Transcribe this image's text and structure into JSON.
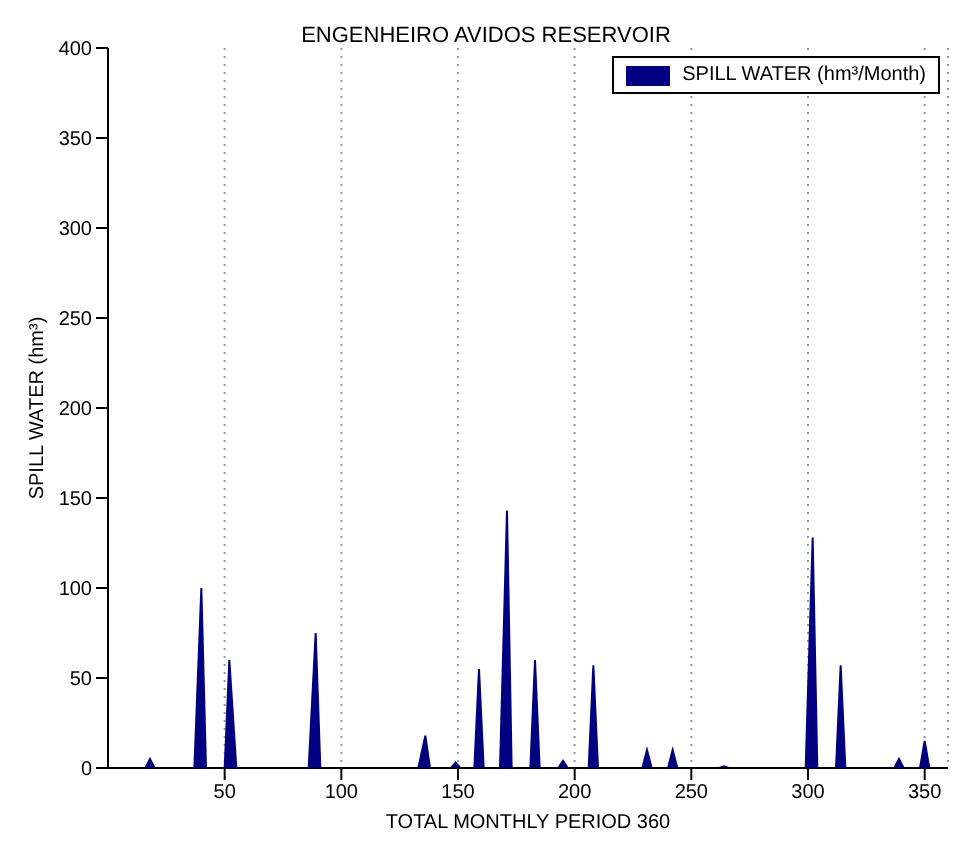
{
  "chart_data": {
    "type": "area",
    "title": "ENGENHEIRO AVIDOS RESERVOIR",
    "xlabel": "TOTAL MONTHLY PERIOD  360",
    "ylabel": "SPILL WATER (hm³)",
    "x": [
      1,
      16,
      18,
      20,
      37,
      40,
      42,
      50,
      52,
      55,
      86,
      89,
      91,
      133,
      136,
      138,
      147,
      149,
      151,
      157,
      159,
      161,
      168,
      171,
      173,
      181,
      183,
      185,
      193,
      195,
      197,
      206,
      208,
      210,
      229,
      231,
      233,
      240,
      242,
      244,
      262,
      264,
      266,
      299,
      302,
      304,
      312,
      314,
      316,
      337,
      339,
      341,
      348,
      350,
      352,
      360
    ],
    "series": [
      {
        "name": "SPILL WATER (hm³/Month)",
        "color": "#000080",
        "values": [
          0,
          0,
          5,
          0,
          0,
          100,
          0,
          0,
          60,
          0,
          0,
          75,
          0,
          0,
          18,
          0,
          0,
          3,
          0,
          0,
          55,
          0,
          0,
          143,
          0,
          0,
          60,
          0,
          0,
          4,
          0,
          0,
          57,
          0,
          0,
          10,
          0,
          0,
          10,
          0,
          0,
          1,
          0,
          0,
          128,
          0,
          0,
          57,
          0,
          0,
          5,
          0,
          0,
          15,
          0,
          0
        ]
      }
    ],
    "xlim": [
      0,
      360
    ],
    "xticks": [
      50,
      100,
      150,
      200,
      250,
      300,
      350
    ],
    "ylim": [
      0,
      400
    ],
    "yticks": [
      0,
      50,
      100,
      150,
      200,
      250,
      300,
      350,
      400
    ],
    "grid": "x",
    "legend": "top right"
  }
}
